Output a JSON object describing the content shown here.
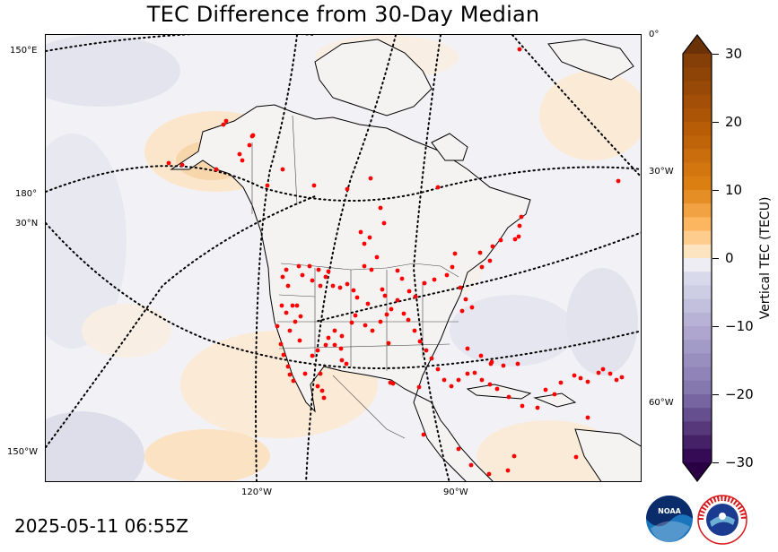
{
  "title": "TEC Difference from 30-Day Median",
  "timestamp": "2025-05-11 06:55Z",
  "colorbar": {
    "label": "Vertical TEC (TECU)",
    "min": -30,
    "max": 30,
    "ticks": [
      "30",
      "20",
      "10",
      "0",
      "−10",
      "−20",
      "−30"
    ],
    "positive_color": "#7f3b08",
    "negative_color": "#2d004b",
    "neutral_color": "#f7f7f7"
  },
  "map_labels": {
    "lon_150e": "150°E",
    "lon_180": "180°",
    "lat_30n": "30°N",
    "lon_150w": "150°W",
    "lon_0": "0°",
    "lon_30w": "30°W",
    "lon_60w": "60°W",
    "lon_120w": "120°W",
    "lon_90w": "90°W"
  },
  "logos": {
    "noaa": "NOAA",
    "nws": "NATIONAL WEATHER SERVICE"
  },
  "station_marker_color": "#ff0000"
}
